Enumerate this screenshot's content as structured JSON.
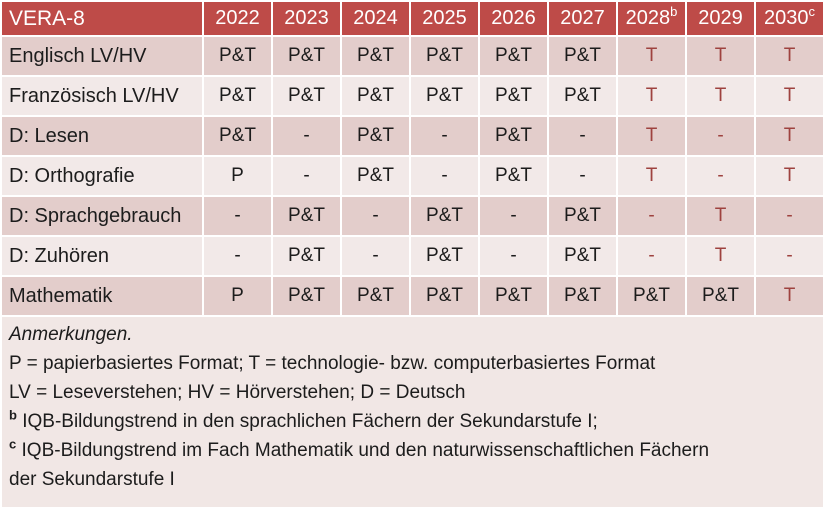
{
  "table": {
    "title": "VERA-8",
    "years": [
      {
        "label": "2022",
        "sup": ""
      },
      {
        "label": "2023",
        "sup": ""
      },
      {
        "label": "2024",
        "sup": ""
      },
      {
        "label": "2025",
        "sup": ""
      },
      {
        "label": "2026",
        "sup": ""
      },
      {
        "label": "2027",
        "sup": ""
      },
      {
        "label": "2028",
        "sup": "b"
      },
      {
        "label": "2029",
        "sup": ""
      },
      {
        "label": "2030",
        "sup": "c"
      }
    ],
    "rows": [
      {
        "label": "Englisch LV/HV",
        "cells": [
          {
            "text": "P&T",
            "accent": false
          },
          {
            "text": "P&T",
            "accent": false
          },
          {
            "text": "P&T",
            "accent": false
          },
          {
            "text": "P&T",
            "accent": false
          },
          {
            "text": "P&T",
            "accent": false
          },
          {
            "text": "P&T",
            "accent": false
          },
          {
            "text": "T",
            "accent": true
          },
          {
            "text": "T",
            "accent": true
          },
          {
            "text": "T",
            "accent": true
          }
        ]
      },
      {
        "label": "Französisch LV/HV",
        "cells": [
          {
            "text": "P&T",
            "accent": false
          },
          {
            "text": "P&T",
            "accent": false
          },
          {
            "text": "P&T",
            "accent": false
          },
          {
            "text": "P&T",
            "accent": false
          },
          {
            "text": "P&T",
            "accent": false
          },
          {
            "text": "P&T",
            "accent": false
          },
          {
            "text": "T",
            "accent": true
          },
          {
            "text": "T",
            "accent": true
          },
          {
            "text": "T",
            "accent": true
          }
        ]
      },
      {
        "label": "D: Lesen",
        "cells": [
          {
            "text": "P&T",
            "accent": false
          },
          {
            "text": "-",
            "accent": false
          },
          {
            "text": "P&T",
            "accent": false
          },
          {
            "text": "-",
            "accent": false
          },
          {
            "text": "P&T",
            "accent": false
          },
          {
            "text": "-",
            "accent": false
          },
          {
            "text": "T",
            "accent": true
          },
          {
            "text": "-",
            "accent": true
          },
          {
            "text": "T",
            "accent": true
          }
        ]
      },
      {
        "label": "D: Orthografie",
        "cells": [
          {
            "text": "P",
            "accent": false
          },
          {
            "text": "-",
            "accent": false
          },
          {
            "text": "P&T",
            "accent": false
          },
          {
            "text": "-",
            "accent": false
          },
          {
            "text": "P&T",
            "accent": false
          },
          {
            "text": "-",
            "accent": false
          },
          {
            "text": "T",
            "accent": true
          },
          {
            "text": "-",
            "accent": true
          },
          {
            "text": "T",
            "accent": true
          }
        ]
      },
      {
        "label": "D: Sprachgebrauch",
        "cells": [
          {
            "text": "-",
            "accent": false
          },
          {
            "text": "P&T",
            "accent": false
          },
          {
            "text": "-",
            "accent": false
          },
          {
            "text": "P&T",
            "accent": false
          },
          {
            "text": "-",
            "accent": false
          },
          {
            "text": "P&T",
            "accent": false
          },
          {
            "text": "-",
            "accent": true
          },
          {
            "text": "T",
            "accent": true
          },
          {
            "text": "-",
            "accent": true
          }
        ]
      },
      {
        "label": "D: Zuhören",
        "cells": [
          {
            "text": "-",
            "accent": false
          },
          {
            "text": "P&T",
            "accent": false
          },
          {
            "text": "-",
            "accent": false
          },
          {
            "text": "P&T",
            "accent": false
          },
          {
            "text": "-",
            "accent": false
          },
          {
            "text": "P&T",
            "accent": false
          },
          {
            "text": "-",
            "accent": true
          },
          {
            "text": "T",
            "accent": true
          },
          {
            "text": "-",
            "accent": true
          }
        ]
      },
      {
        "label": "Mathematik",
        "cells": [
          {
            "text": "P",
            "accent": false
          },
          {
            "text": "P&T",
            "accent": false
          },
          {
            "text": "P&T",
            "accent": false
          },
          {
            "text": "P&T",
            "accent": false
          },
          {
            "text": "P&T",
            "accent": false
          },
          {
            "text": "P&T",
            "accent": false
          },
          {
            "text": "P&T",
            "accent": false
          },
          {
            "text": "P&T",
            "accent": false
          },
          {
            "text": "T",
            "accent": true
          }
        ]
      }
    ]
  },
  "notes": {
    "heading": "Anmerkungen.",
    "legend_format": "P = papierbasiertes Format; T = technologie- bzw. computerbasiertes Format",
    "legend_abbrev": "LV = Leseverstehen; HV = Hörverstehen; D = Deutsch",
    "footnote_b": {
      "sup": "b",
      "text": "IQB-Bildungstrend in den sprachlichen Fächern der Sekundarstufe I;"
    },
    "footnote_c": {
      "sup": "c",
      "text": "IQB-Bildungstrend im Fach Mathematik und den naturwissenschaftlichen Fächern der Sekundarstufe I"
    }
  },
  "colors": {
    "header_bg": "#BE4B48",
    "header_text": "#FFFFFF",
    "row_dark": "#E3CDCB",
    "row_light": "#F2E9E8",
    "notes_bg": "#F1E7E5",
    "accent_text": "#9E423F",
    "body_text": "#1C1C1C",
    "grid_line": "#FFFFFF"
  }
}
